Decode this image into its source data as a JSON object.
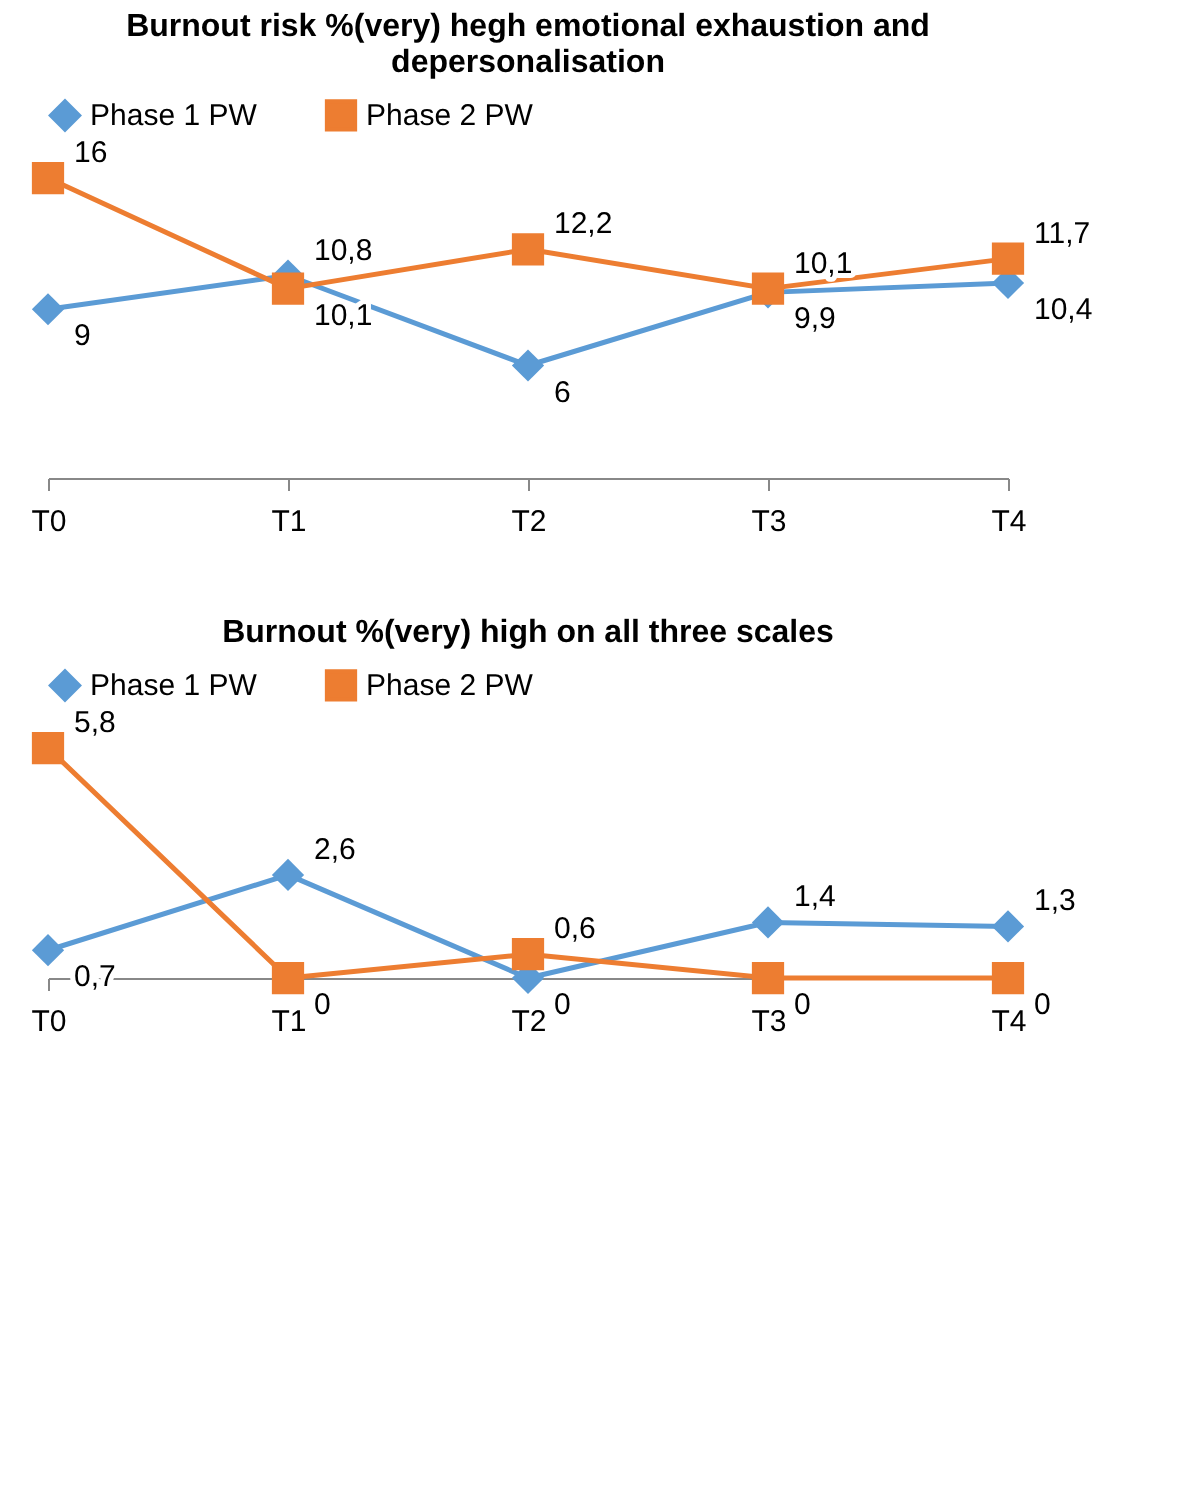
{
  "chart_data": [
    {
      "type": "line",
      "title": "Burnout risk %(very) hegh emotional exhaustion and depersonalisation",
      "categories": [
        "T0",
        "T1",
        "T2",
        "T3",
        "T4"
      ],
      "legend": "top",
      "grid": false,
      "series": [
        {
          "name": "Phase 1 PW",
          "color": "#5b9bd5",
          "marker": "diamond",
          "values": [
            9,
            10.8,
            6,
            9.9,
            10.4
          ],
          "value_labels": [
            "9",
            "10,8",
            "6",
            "9,9",
            "10,4"
          ]
        },
        {
          "name": "Phase 2 PW",
          "color": "#ed7d31",
          "marker": "square",
          "values": [
            16,
            10.1,
            12.2,
            10.1,
            11.7
          ],
          "value_labels": [
            "16",
            "10,1",
            "12,2",
            "10,1",
            "11,7"
          ]
        }
      ]
    },
    {
      "type": "line",
      "title": "Burnout %(very) high on all three scales",
      "categories": [
        "T0",
        "T1",
        "T2",
        "T3",
        "T4"
      ],
      "legend": "top",
      "grid": false,
      "series": [
        {
          "name": "Phase 1 PW",
          "color": "#5b9bd5",
          "marker": "diamond",
          "values": [
            0.7,
            2.6,
            0,
            1.4,
            1.3
          ],
          "value_labels": [
            "0,7",
            "2,6",
            "0",
            "1,4",
            "1,3"
          ]
        },
        {
          "name": "Phase 2 PW",
          "color": "#ed7d31",
          "marker": "square",
          "values": [
            5.8,
            0,
            0.6,
            0,
            0
          ],
          "value_labels": [
            "5,8",
            "0",
            "0,6",
            "0",
            "0"
          ]
        }
      ]
    }
  ]
}
